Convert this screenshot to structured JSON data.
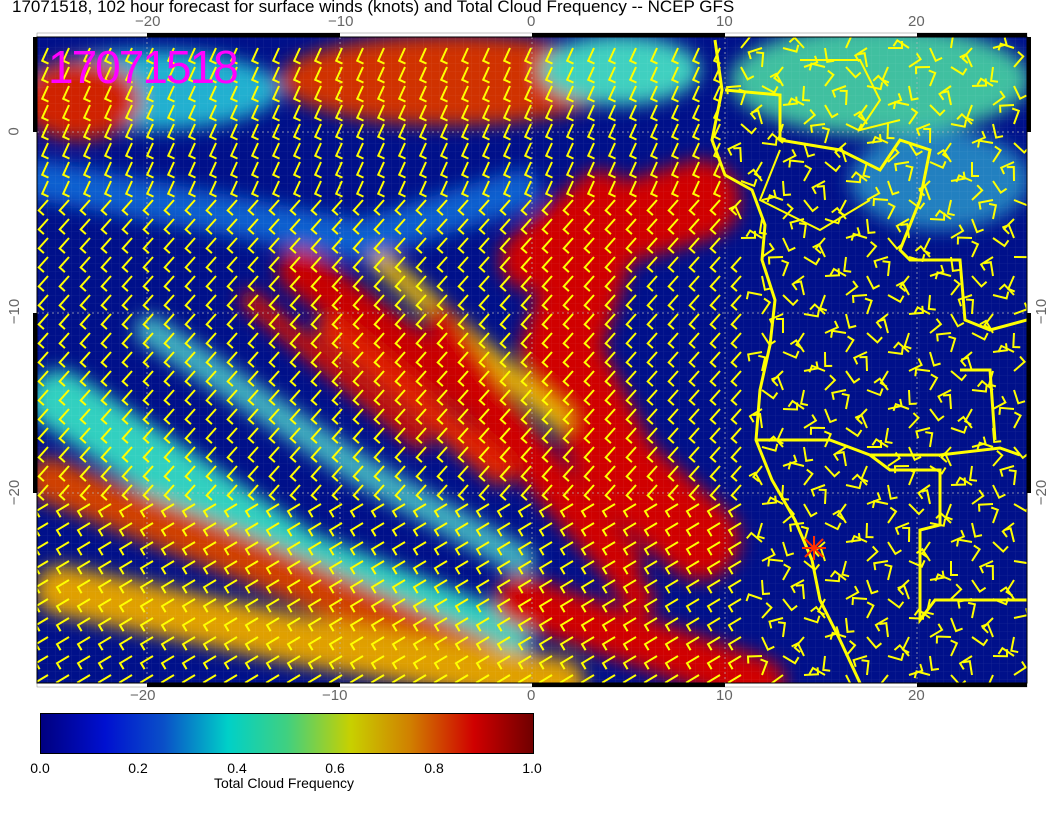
{
  "title": "17071518, 102 hour forecast for surface winds (knots) and Total Cloud Frequency -- NCEP GFS",
  "timestamp_label": "17071518",
  "x_ticks": [
    "−20",
    "−10",
    "0",
    "10",
    "20"
  ],
  "y_ticks": [
    "0",
    "−10",
    "−20"
  ],
  "right_y_ticks": [
    "−10",
    "−20"
  ],
  "colorbar": {
    "label": "Total Cloud Frequency",
    "ticks": [
      "0.0",
      "0.2",
      "0.4",
      "0.6",
      "0.8",
      "1.0"
    ],
    "colors": [
      "#000080",
      "#0010d0",
      "#00d0c8",
      "#c8d000",
      "#d00000",
      "#700000"
    ]
  },
  "colors": {
    "wind_barbs": "#ffff00",
    "coastline": "#ffff00",
    "marker": "#ff3000",
    "stamp": "#ff00ff"
  },
  "map": {
    "lon_range": [
      -25.7,
      25.7
    ],
    "lat_range": [
      -30.6,
      5.3
    ],
    "marker": {
      "lon": 14.5,
      "lat": -22.9
    }
  }
}
